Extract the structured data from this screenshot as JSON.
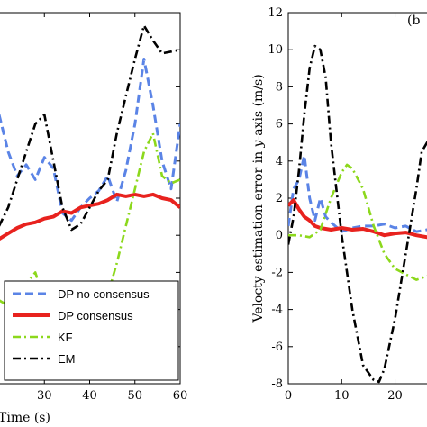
{
  "chart_data": [
    {
      "type": "line",
      "panel": "a",
      "xlabel": "Time (s)",
      "ylabel": "",
      "xlim": [
        20,
        60
      ],
      "ylim": [
        -8,
        12
      ],
      "x_ticks": [
        30,
        40,
        50,
        60
      ],
      "y_ticks": [],
      "grid": false,
      "legend_position": "bottom-right",
      "series": [
        {
          "name": "DP no consensus",
          "color": "#5b84e6",
          "style": "dashed",
          "x": [
            20,
            22,
            24,
            26,
            28,
            30,
            32,
            34,
            36,
            38,
            40,
            42,
            44,
            46,
            48,
            50,
            52,
            54,
            56,
            58,
            60
          ],
          "y": [
            6.5,
            4.5,
            3.2,
            3.8,
            3.0,
            4.2,
            3.6,
            1.2,
            0.8,
            1.5,
            2.0,
            2.4,
            3.2,
            1.8,
            3.5,
            6.0,
            9.5,
            7.0,
            4.0,
            2.5,
            6.0
          ]
        },
        {
          "name": "DP consensus",
          "color": "#e8221e",
          "style": "solid",
          "x": [
            20,
            22,
            24,
            26,
            28,
            30,
            32,
            34,
            36,
            38,
            40,
            42,
            44,
            46,
            48,
            50,
            52,
            54,
            56,
            58,
            60
          ],
          "y": [
            -0.2,
            0.1,
            0.4,
            0.6,
            0.7,
            0.9,
            1.0,
            1.3,
            1.2,
            1.5,
            1.6,
            1.7,
            1.9,
            2.2,
            2.1,
            2.2,
            2.1,
            2.2,
            2.0,
            1.9,
            1.5
          ]
        },
        {
          "name": "KF",
          "color": "#8cd81c",
          "style": "dashdot",
          "x": [
            20,
            22,
            24,
            26,
            28,
            30,
            32,
            34,
            36,
            38,
            40,
            42,
            44,
            46,
            48,
            50,
            52,
            54,
            56,
            58,
            60
          ],
          "y": [
            -3.5,
            -3.8,
            -3.2,
            -2.6,
            -2.0,
            -3.5,
            -5.5,
            -6.6,
            -6.9,
            -6.8,
            -6.4,
            -5.0,
            -3.2,
            -1.5,
            0.5,
            2.5,
            4.5,
            5.5,
            3.2,
            2.8,
            3.0
          ]
        },
        {
          "name": "EM",
          "color": "#000000",
          "style": "dashdot",
          "x": [
            20,
            22,
            24,
            26,
            28,
            30,
            32,
            34,
            36,
            38,
            40,
            42,
            44,
            46,
            48,
            50,
            52,
            54,
            56,
            58,
            60
          ],
          "y": [
            0.5,
            1.5,
            3.0,
            4.5,
            6.0,
            6.5,
            4.0,
            1.5,
            0.3,
            0.6,
            1.5,
            2.4,
            3.0,
            5.5,
            7.5,
            9.5,
            11.3,
            10.5,
            9.8,
            9.9,
            10.0
          ]
        }
      ]
    },
    {
      "type": "line",
      "panel": "b",
      "xlabel": "",
      "ylabel": "Velocty estimation error in y-axis (m/s)",
      "xlim": [
        0,
        27
      ],
      "ylim": [
        -8,
        12
      ],
      "x_ticks": [
        0,
        10,
        20
      ],
      "y_ticks": [
        12,
        10,
        8,
        6,
        4,
        2,
        0,
        -2,
        -4,
        -6,
        -8
      ],
      "grid": false,
      "panel_label": "(b",
      "series": [
        {
          "name": "DP no consensus",
          "color": "#5b84e6",
          "style": "dashed",
          "x": [
            0,
            1,
            2,
            3,
            4,
            5,
            6,
            7,
            8,
            10,
            12,
            14,
            16,
            18,
            20,
            22,
            24,
            26,
            27
          ],
          "y": [
            0.5,
            2.5,
            3.0,
            4.3,
            2.0,
            0.8,
            2.0,
            1.0,
            0.7,
            0.2,
            0.4,
            0.5,
            0.5,
            0.6,
            0.4,
            0.5,
            0.2,
            0.3,
            0.4
          ]
        },
        {
          "name": "DP consensus",
          "color": "#e8221e",
          "style": "solid",
          "x": [
            0,
            1,
            2,
            3,
            4,
            5,
            6,
            8,
            10,
            12,
            14,
            16,
            18,
            20,
            22,
            24,
            26,
            27
          ],
          "y": [
            1.6,
            1.9,
            1.4,
            1.0,
            0.8,
            0.5,
            0.4,
            0.3,
            0.4,
            0.3,
            0.35,
            0.2,
            0.0,
            0.1,
            0.15,
            0.0,
            -0.1,
            0.0
          ]
        },
        {
          "name": "KF",
          "color": "#8cd81c",
          "style": "dashdot",
          "x": [
            0,
            2,
            4,
            6,
            8,
            10,
            11,
            12,
            14,
            16,
            18,
            20,
            22,
            24,
            26,
            27
          ],
          "y": [
            0.0,
            0.0,
            -0.1,
            0.3,
            2.0,
            3.4,
            3.8,
            3.6,
            2.5,
            0.5,
            -1.0,
            -1.8,
            -2.1,
            -2.4,
            -2.2,
            -2.1
          ]
        },
        {
          "name": "EM",
          "color": "#000000",
          "style": "dashdot",
          "x": [
            0,
            1,
            2,
            3,
            4,
            5,
            6,
            7,
            8,
            10,
            12,
            14,
            16,
            17,
            18,
            20,
            22,
            24,
            25,
            26,
            27
          ],
          "y": [
            -0.5,
            1.0,
            3.5,
            6.5,
            9.0,
            10.2,
            10.0,
            8.5,
            5.0,
            0.0,
            -4.0,
            -7.0,
            -7.8,
            -7.9,
            -7.2,
            -4.5,
            -1.0,
            2.5,
            4.5,
            5.0,
            4.6
          ]
        }
      ]
    }
  ]
}
